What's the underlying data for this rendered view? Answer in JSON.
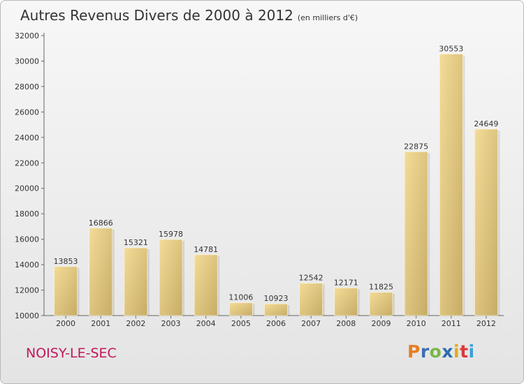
{
  "header": {
    "title": "Autres Revenus Divers de 2000 à 2012",
    "subtitle": "(en milliers d'€)"
  },
  "footer": {
    "city": "NOISY-LE-SEC",
    "brand_letters": [
      "P",
      "r",
      "o",
      "x",
      "i",
      "t",
      "i"
    ],
    "brand_colors": [
      "#e67e22",
      "#3a6fb0",
      "#7ab648",
      "#2b6cb0",
      "#e6a817",
      "#d83a3a",
      "#3aa0d8"
    ]
  },
  "colors": {
    "bar_light": "#f3dc98",
    "bar_dark": "#c7ac66",
    "city": "#c2185b"
  },
  "chart_data": {
    "type": "bar",
    "categories": [
      "2000",
      "2001",
      "2002",
      "2003",
      "2004",
      "2005",
      "2006",
      "2007",
      "2008",
      "2009",
      "2010",
      "2011",
      "2012"
    ],
    "values": [
      13853,
      16866,
      15321,
      15978,
      14781,
      11006,
      10923,
      12542,
      12171,
      11825,
      22875,
      30553,
      24649
    ],
    "value_labels": [
      "13853",
      "16866",
      "15321",
      "15978",
      "14781",
      "11006",
      "10923",
      "12542",
      "12171",
      "11825",
      "22875",
      "30553",
      "24649"
    ],
    "ylim": [
      10000,
      32000
    ],
    "yticks": [
      "10000",
      "12000",
      "14000",
      "16000",
      "18000",
      "20000",
      "22000",
      "24000",
      "26000",
      "28000",
      "30000",
      "32000"
    ],
    "grid": false,
    "xlabel": "",
    "ylabel": ""
  }
}
